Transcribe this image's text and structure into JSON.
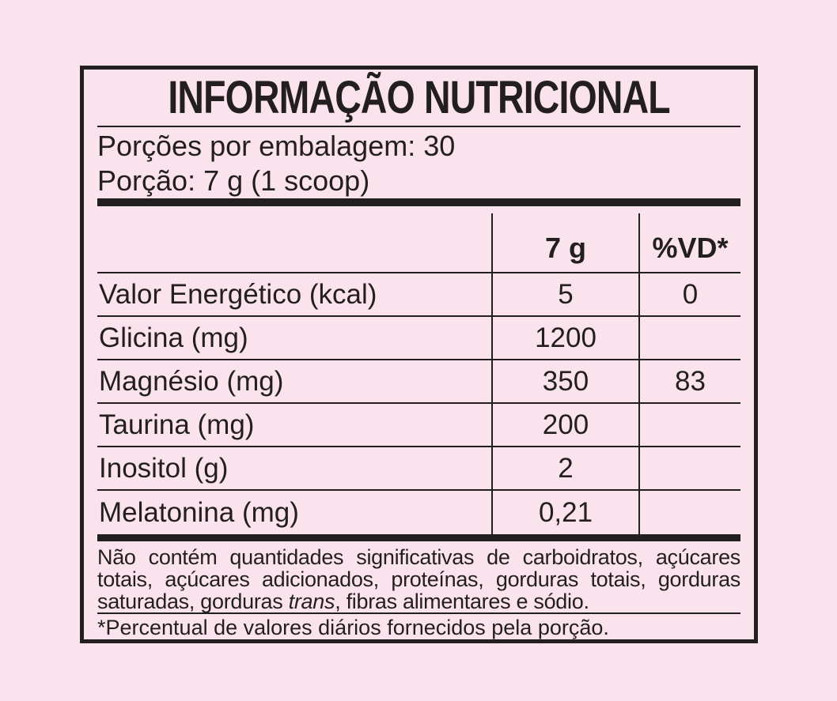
{
  "colors": {
    "background": "#fbe3ed",
    "ink": "#231f20"
  },
  "title": "INFORMAÇÃO NUTRICIONAL",
  "package_info": {
    "servings_line": "Porções por embalagem: 30",
    "portion_line": "Porção: 7 g (1 scoop)"
  },
  "table": {
    "column_headers": {
      "amount": "7 g",
      "daily_value": "%VD*"
    },
    "rows": [
      {
        "name": "Valor Energético (kcal)",
        "amount": "5",
        "daily_value": "0"
      },
      {
        "name": "Glicina (mg)",
        "amount": "1200",
        "daily_value": ""
      },
      {
        "name": "Magnésio (mg)",
        "amount": "350",
        "daily_value": "83"
      },
      {
        "name": "Taurina (mg)",
        "amount": "200",
        "daily_value": ""
      },
      {
        "name": "Inositol (g)",
        "amount": "2",
        "daily_value": ""
      },
      {
        "name": "Melatonina (mg)",
        "amount": "0,21",
        "daily_value": ""
      }
    ]
  },
  "disclaimer": {
    "part1": "Não contém quantidades significativas de carboidratos, açúcares totais, açúcares adicionados, proteínas, gorduras totais, gorduras saturadas, gorduras ",
    "italic": "trans",
    "part2": ", fibras alimentares e sódio."
  },
  "footnote": "*Percentual de valores diários fornecidos pela porção."
}
